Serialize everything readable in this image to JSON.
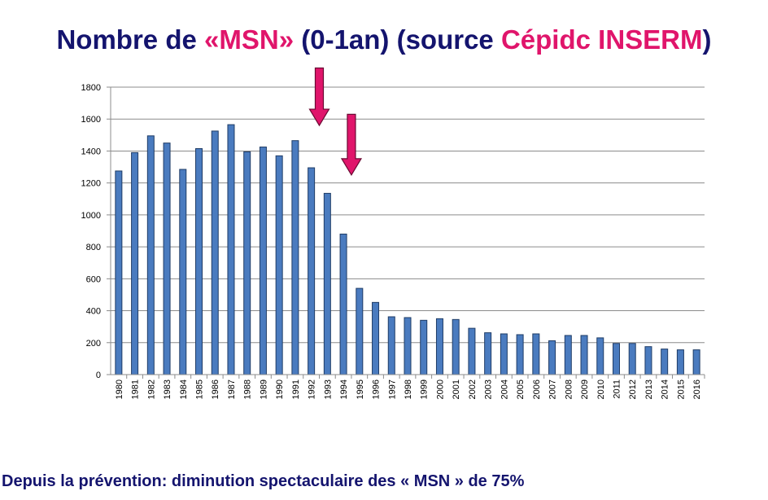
{
  "title": {
    "part1": "Nombre de ",
    "part2": "«MSN»",
    "part3": "  (0-1an) (source ",
    "part4": "Cépidc INSERM",
    "part5": ")"
  },
  "footer": "Depuis la prévention: diminution spectaculaire des « MSN » de 75%",
  "colors": {
    "bar_fill": "#4a7bbf",
    "bar_stroke": "#1f3c66",
    "arrow": "#e0156b",
    "title": "#14146e",
    "title_highlight": "#e0156b"
  },
  "chart_data": {
    "type": "bar",
    "categories": [
      "1980",
      "1981",
      "1982",
      "1983",
      "1984",
      "1985",
      "1986",
      "1987",
      "1988",
      "1989",
      "1990",
      "1991",
      "1992",
      "1993",
      "1994",
      "1995",
      "1996",
      "1997",
      "1998",
      "1999",
      "2000",
      "2001",
      "2002",
      "2003",
      "2004",
      "2005",
      "2006",
      "2007",
      "2008",
      "2009",
      "2010",
      "2011",
      "2012",
      "2013",
      "2014",
      "2015",
      "2016"
    ],
    "values": [
      1275,
      1390,
      1495,
      1450,
      1285,
      1415,
      1525,
      1565,
      1395,
      1425,
      1370,
      1465,
      1295,
      1135,
      880,
      540,
      452,
      362,
      357,
      340,
      350,
      345,
      290,
      262,
      255,
      250,
      255,
      212,
      245,
      245,
      230,
      195,
      195,
      175,
      160,
      155,
      155
    ],
    "ylim": [
      0,
      1800
    ],
    "yticks": [
      0,
      200,
      400,
      600,
      800,
      1000,
      1200,
      1400,
      1600,
      1800
    ],
    "grid": true,
    "annotations": [
      {
        "type": "arrow",
        "x": "1992",
        "y_top": 1920,
        "y_bottom": 1560
      },
      {
        "type": "arrow",
        "x": "1994",
        "y_top": 1630,
        "y_bottom": 1250
      }
    ]
  }
}
